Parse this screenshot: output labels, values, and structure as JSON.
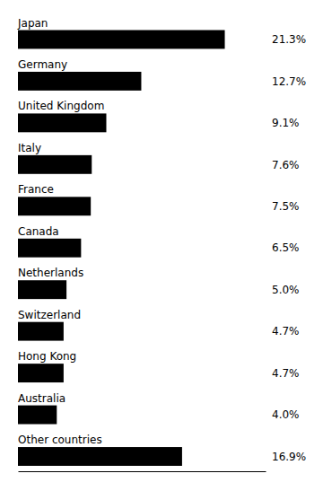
{
  "chart_data": {
    "type": "bar",
    "orientation": "horizontal",
    "categories": [
      "Japan",
      "Germany",
      "United Kingdom",
      "Italy",
      "France",
      "Canada",
      "Netherlands",
      "Switzerland",
      "Hong Kong",
      "Australia",
      "Other countries"
    ],
    "values": [
      21.3,
      12.7,
      9.1,
      7.6,
      7.5,
      6.5,
      5.0,
      4.7,
      4.7,
      4.0,
      16.9
    ],
    "value_labels": [
      "21.3%",
      "12.7%",
      "9.1%",
      "7.6%",
      "7.5%",
      "6.5%",
      "5.0%",
      "4.7%",
      "4.7%",
      "4.0%",
      "16.9%"
    ],
    "color": "#000000",
    "xlim": [
      0,
      25.5
    ],
    "data_labels": true,
    "tick_labels": false,
    "grid": false
  }
}
